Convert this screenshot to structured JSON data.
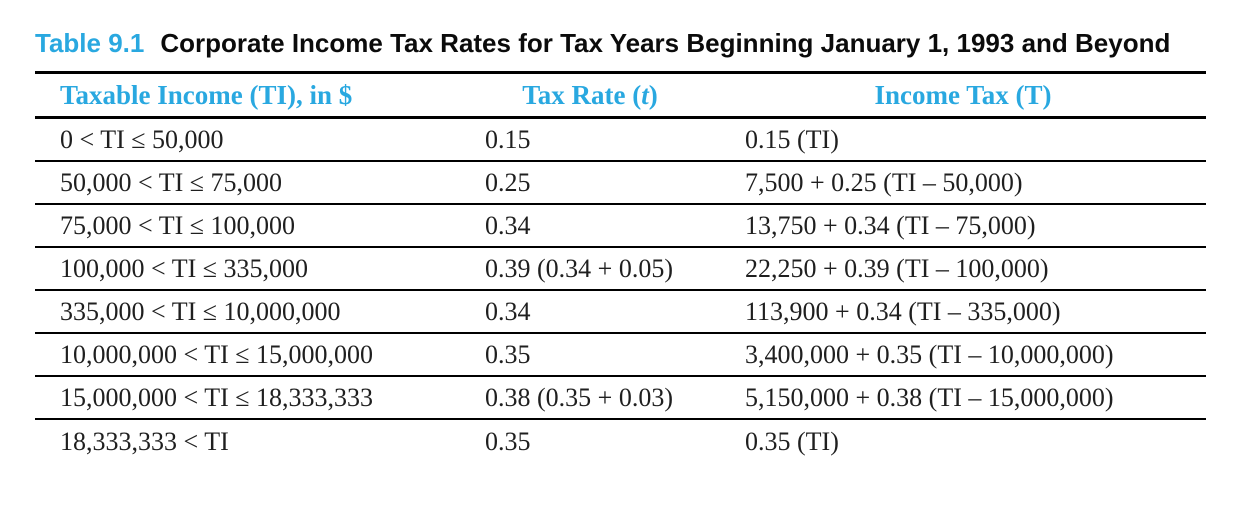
{
  "colors": {
    "accent": "#29a8e0",
    "rule": "#000000",
    "text": "#1f1f1f",
    "background": "#ffffff"
  },
  "caption": {
    "number": "Table 9.1",
    "title": "Corporate Income Tax Rates for Tax Years Beginning January 1, 1993 and Beyond"
  },
  "table": {
    "headers": {
      "taxable_income": "Taxable Income (TI), in $",
      "tax_rate_pre": "Tax Rate (",
      "tax_rate_var": "t",
      "tax_rate_post": ")",
      "income_tax": "Income Tax (T)"
    },
    "rows": [
      {
        "range": "0 < TI ≤ 50,000",
        "rate": "0.15",
        "tax": "0.15 (TI)"
      },
      {
        "range": "50,000 < TI ≤ 75,000",
        "rate": "0.25",
        "tax": "7,500 + 0.25 (TI – 50,000)"
      },
      {
        "range": "75,000 < TI ≤ 100,000",
        "rate": "0.34",
        "tax": "13,750 + 0.34 (TI – 75,000)"
      },
      {
        "range": "100,000 < TI ≤ 335,000",
        "rate": "0.39 (0.34 + 0.05)",
        "tax": "22,250 + 0.39 (TI – 100,000)"
      },
      {
        "range": "335,000 < TI ≤ 10,000,000",
        "rate": "0.34",
        "tax": "113,900 + 0.34 (TI – 335,000)"
      },
      {
        "range": "10,000,000 < TI ≤ 15,000,000",
        "rate": "0.35",
        "tax": "3,400,000 + 0.35 (TI – 10,000,000)"
      },
      {
        "range": "15,000,000 < TI ≤ 18,333,333",
        "rate": "0.38 (0.35 + 0.03)",
        "tax": "5,150,000 + 0.38 (TI – 15,000,000)"
      },
      {
        "range": "18,333,333 < TI",
        "rate": "0.35",
        "tax": "0.35 (TI)"
      }
    ]
  }
}
